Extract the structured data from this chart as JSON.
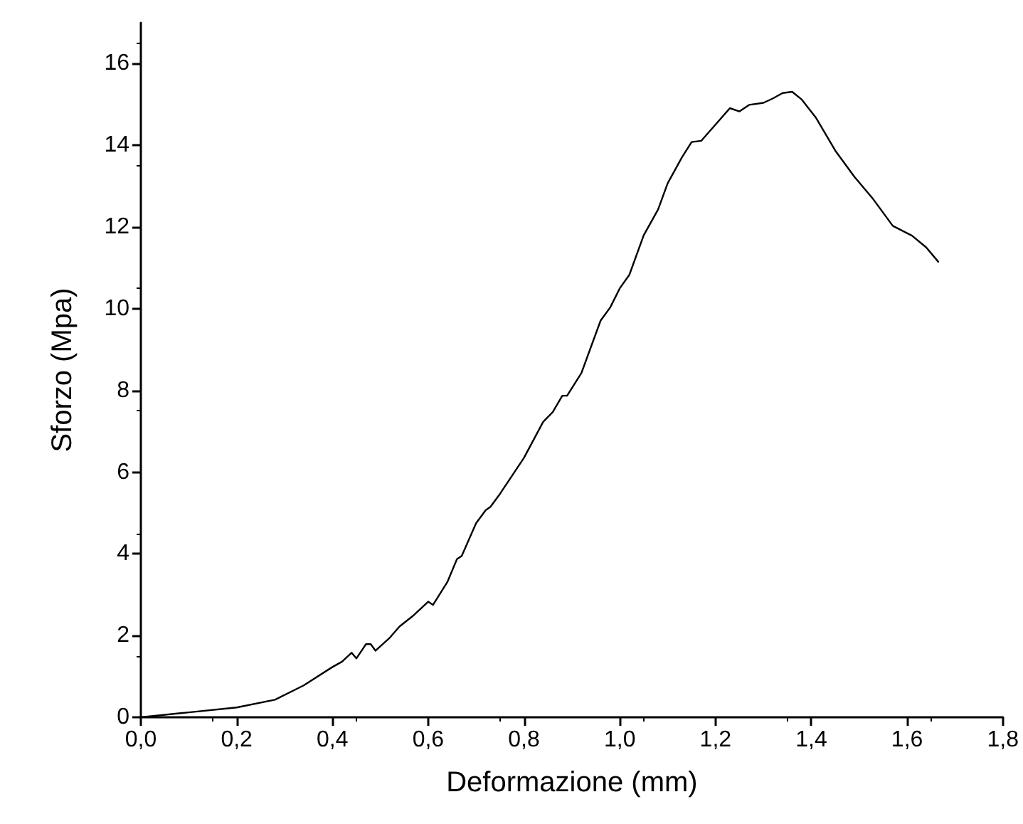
{
  "chart_data": {
    "type": "line",
    "xlabel": "Deformazione (mm)",
    "ylabel": "Sforzo (Mpa)",
    "xlim": [
      0,
      1.8
    ],
    "xticks": [
      {
        "value": 0,
        "label": "0,0"
      },
      {
        "value": 0.2,
        "label": "0,2"
      },
      {
        "value": 0.4,
        "label": "0,4"
      },
      {
        "value": 0.6,
        "label": "0,6"
      },
      {
        "value": 0.8,
        "label": "0,8"
      },
      {
        "value": 1.0,
        "label": "1,0"
      },
      {
        "value": 1.2,
        "label": "1,2"
      },
      {
        "value": 1.4,
        "label": "1,4"
      },
      {
        "value": 1.6,
        "label": "1,6"
      },
      {
        "value": 1.8,
        "label": "1,8"
      }
    ],
    "ylim": [
      0,
      17
    ],
    "yticks": [
      0,
      2,
      4,
      6,
      8,
      10,
      12,
      14,
      16
    ],
    "grid": false,
    "marker": "none",
    "line_style": "solid",
    "series": [
      {
        "color": "#000000",
        "x": [
          0,
          0.1,
          0.2,
          0.28,
          0.34,
          0.4,
          0.42,
          0.44,
          0.45,
          0.47,
          0.48,
          0.49,
          0.52,
          0.54,
          0.57,
          0.6,
          0.61,
          0.64,
          0.66,
          0.67,
          0.7,
          0.72,
          0.73,
          0.75,
          0.8,
          0.84,
          0.86,
          0.88,
          0.89,
          0.92,
          0.96,
          0.98,
          1.0,
          1.02,
          1.05,
          1.08,
          1.1,
          1.13,
          1.15,
          1.17,
          1.2,
          1.23,
          1.25,
          1.27,
          1.3,
          1.32,
          1.34,
          1.36,
          1.38,
          1.41,
          1.45,
          1.49,
          1.53,
          1.57,
          1.61,
          1.64,
          1.665
        ],
        "values": [
          0,
          0.12,
          0.24,
          0.43,
          0.78,
          1.23,
          1.36,
          1.58,
          1.44,
          1.79,
          1.79,
          1.63,
          1.95,
          2.22,
          2.5,
          2.83,
          2.75,
          3.31,
          3.87,
          3.95,
          4.75,
          5.07,
          5.15,
          5.47,
          6.35,
          7.23,
          7.47,
          7.87,
          7.87,
          8.43,
          9.71,
          10.03,
          10.5,
          10.83,
          11.8,
          12.43,
          13.07,
          13.71,
          14.08,
          14.11,
          14.51,
          14.91,
          14.83,
          14.99,
          15.04,
          15.15,
          15.28,
          15.31,
          15.12,
          14.67,
          13.87,
          13.23,
          12.67,
          12.03,
          11.79,
          11.5,
          11.15
        ]
      }
    ]
  }
}
